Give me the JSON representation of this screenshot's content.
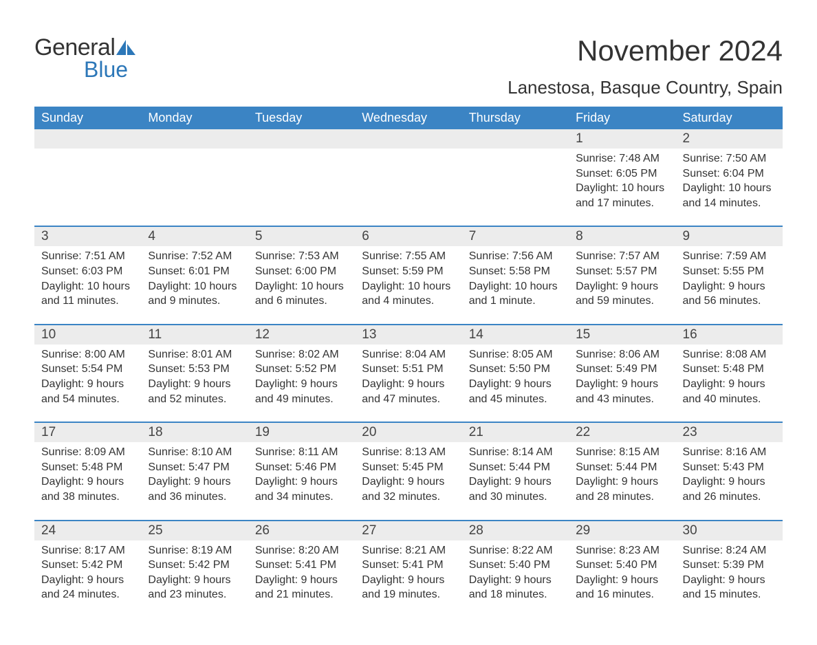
{
  "colors": {
    "accent": "#3b84c4",
    "logo_blue": "#2c77b8",
    "text": "#333333",
    "day_bg": "#ececec",
    "page_bg": "#ffffff"
  },
  "typography": {
    "title_fontsize": 42,
    "subtitle_fontsize": 26,
    "dow_fontsize": 18,
    "daynum_fontsize": 19,
    "body_fontsize": 16
  },
  "logo": {
    "part1": "General",
    "part2": "Blue"
  },
  "title": "November 2024",
  "subtitle": "Lanestosa, Basque Country, Spain",
  "days_of_week": [
    "Sunday",
    "Monday",
    "Tuesday",
    "Wednesday",
    "Thursday",
    "Friday",
    "Saturday"
  ],
  "labels": {
    "sunrise": "Sunrise:",
    "sunset": "Sunset:",
    "daylight": "Daylight:"
  },
  "weeks": [
    {
      "top_border": false,
      "days": [
        {
          "empty": true
        },
        {
          "empty": true
        },
        {
          "empty": true
        },
        {
          "empty": true
        },
        {
          "empty": true
        },
        {
          "num": "1",
          "sunrise": "7:48 AM",
          "sunset": "6:05 PM",
          "daylight": "10 hours and 17 minutes."
        },
        {
          "num": "2",
          "sunrise": "7:50 AM",
          "sunset": "6:04 PM",
          "daylight": "10 hours and 14 minutes."
        }
      ]
    },
    {
      "top_border": true,
      "days": [
        {
          "num": "3",
          "sunrise": "7:51 AM",
          "sunset": "6:03 PM",
          "daylight": "10 hours and 11 minutes."
        },
        {
          "num": "4",
          "sunrise": "7:52 AM",
          "sunset": "6:01 PM",
          "daylight": "10 hours and 9 minutes."
        },
        {
          "num": "5",
          "sunrise": "7:53 AM",
          "sunset": "6:00 PM",
          "daylight": "10 hours and 6 minutes."
        },
        {
          "num": "6",
          "sunrise": "7:55 AM",
          "sunset": "5:59 PM",
          "daylight": "10 hours and 4 minutes."
        },
        {
          "num": "7",
          "sunrise": "7:56 AM",
          "sunset": "5:58 PM",
          "daylight": "10 hours and 1 minute."
        },
        {
          "num": "8",
          "sunrise": "7:57 AM",
          "sunset": "5:57 PM",
          "daylight": "9 hours and 59 minutes."
        },
        {
          "num": "9",
          "sunrise": "7:59 AM",
          "sunset": "5:55 PM",
          "daylight": "9 hours and 56 minutes."
        }
      ]
    },
    {
      "top_border": true,
      "days": [
        {
          "num": "10",
          "sunrise": "8:00 AM",
          "sunset": "5:54 PM",
          "daylight": "9 hours and 54 minutes."
        },
        {
          "num": "11",
          "sunrise": "8:01 AM",
          "sunset": "5:53 PM",
          "daylight": "9 hours and 52 minutes."
        },
        {
          "num": "12",
          "sunrise": "8:02 AM",
          "sunset": "5:52 PM",
          "daylight": "9 hours and 49 minutes."
        },
        {
          "num": "13",
          "sunrise": "8:04 AM",
          "sunset": "5:51 PM",
          "daylight": "9 hours and 47 minutes."
        },
        {
          "num": "14",
          "sunrise": "8:05 AM",
          "sunset": "5:50 PM",
          "daylight": "9 hours and 45 minutes."
        },
        {
          "num": "15",
          "sunrise": "8:06 AM",
          "sunset": "5:49 PM",
          "daylight": "9 hours and 43 minutes."
        },
        {
          "num": "16",
          "sunrise": "8:08 AM",
          "sunset": "5:48 PM",
          "daylight": "9 hours and 40 minutes."
        }
      ]
    },
    {
      "top_border": true,
      "days": [
        {
          "num": "17",
          "sunrise": "8:09 AM",
          "sunset": "5:48 PM",
          "daylight": "9 hours and 38 minutes."
        },
        {
          "num": "18",
          "sunrise": "8:10 AM",
          "sunset": "5:47 PM",
          "daylight": "9 hours and 36 minutes."
        },
        {
          "num": "19",
          "sunrise": "8:11 AM",
          "sunset": "5:46 PM",
          "daylight": "9 hours and 34 minutes."
        },
        {
          "num": "20",
          "sunrise": "8:13 AM",
          "sunset": "5:45 PM",
          "daylight": "9 hours and 32 minutes."
        },
        {
          "num": "21",
          "sunrise": "8:14 AM",
          "sunset": "5:44 PM",
          "daylight": "9 hours and 30 minutes."
        },
        {
          "num": "22",
          "sunrise": "8:15 AM",
          "sunset": "5:44 PM",
          "daylight": "9 hours and 28 minutes."
        },
        {
          "num": "23",
          "sunrise": "8:16 AM",
          "sunset": "5:43 PM",
          "daylight": "9 hours and 26 minutes."
        }
      ]
    },
    {
      "top_border": true,
      "days": [
        {
          "num": "24",
          "sunrise": "8:17 AM",
          "sunset": "5:42 PM",
          "daylight": "9 hours and 24 minutes."
        },
        {
          "num": "25",
          "sunrise": "8:19 AM",
          "sunset": "5:42 PM",
          "daylight": "9 hours and 23 minutes."
        },
        {
          "num": "26",
          "sunrise": "8:20 AM",
          "sunset": "5:41 PM",
          "daylight": "9 hours and 21 minutes."
        },
        {
          "num": "27",
          "sunrise": "8:21 AM",
          "sunset": "5:41 PM",
          "daylight": "9 hours and 19 minutes."
        },
        {
          "num": "28",
          "sunrise": "8:22 AM",
          "sunset": "5:40 PM",
          "daylight": "9 hours and 18 minutes."
        },
        {
          "num": "29",
          "sunrise": "8:23 AM",
          "sunset": "5:40 PM",
          "daylight": "9 hours and 16 minutes."
        },
        {
          "num": "30",
          "sunrise": "8:24 AM",
          "sunset": "5:39 PM",
          "daylight": "9 hours and 15 minutes."
        }
      ]
    }
  ]
}
